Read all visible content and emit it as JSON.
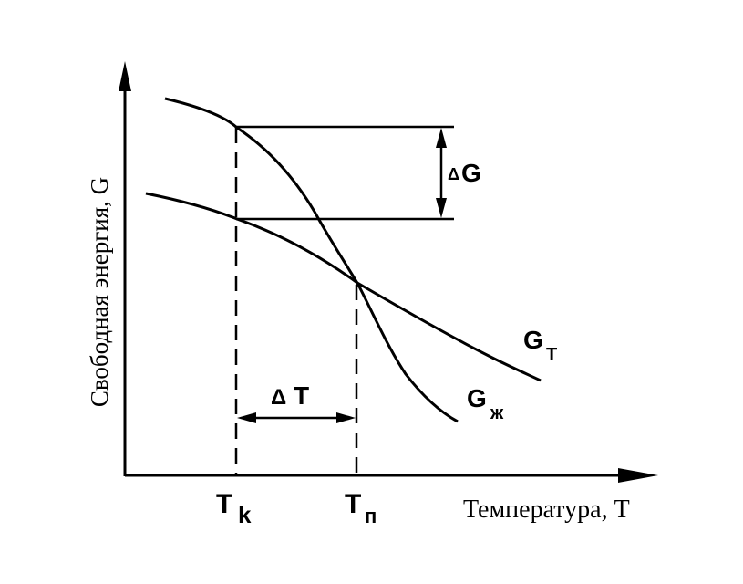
{
  "axes": {
    "y_label": "Свободная энергия, G",
    "x_label": "Температура, T"
  },
  "curves": {
    "solid": {
      "main": "G",
      "sub": "Т"
    },
    "liquid": {
      "main": "G",
      "sub": "ж"
    }
  },
  "markers": {
    "tk": {
      "main": "T",
      "sub": "k"
    },
    "tp": {
      "main": "T",
      "sub": "п"
    }
  },
  "intervals": {
    "delta_g": {
      "symbol": "Δ",
      "letter": "G"
    },
    "delta_t": {
      "symbol": "Δ",
      "letter": "T"
    }
  },
  "colors": {
    "ink": "#000000",
    "background": "#ffffff"
  }
}
